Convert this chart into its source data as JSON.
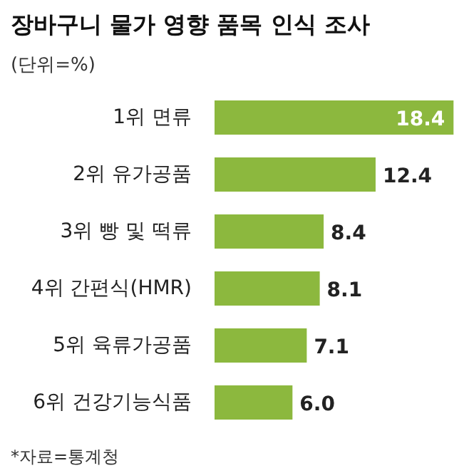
{
  "chart_data": {
    "type": "bar",
    "orientation": "horizontal",
    "title": "장바구니 물가 영향 품목 인식 조사",
    "subtitle": "(단위=%)",
    "categories": [
      "1위 면류",
      "2위 유가공품",
      "3위 빵 및 떡류",
      "4위 간편식(HMR)",
      "5위 육류가공품",
      "6위 건강기능식품"
    ],
    "values": [
      18.4,
      12.4,
      8.4,
      8.1,
      7.1,
      6.0
    ],
    "value_labels": [
      "18.4",
      "12.4",
      "8.4",
      "8.1",
      "7.1",
      "6.0"
    ],
    "color": "#8cb83e",
    "annotations": [
      "*자료=통계청"
    ]
  }
}
